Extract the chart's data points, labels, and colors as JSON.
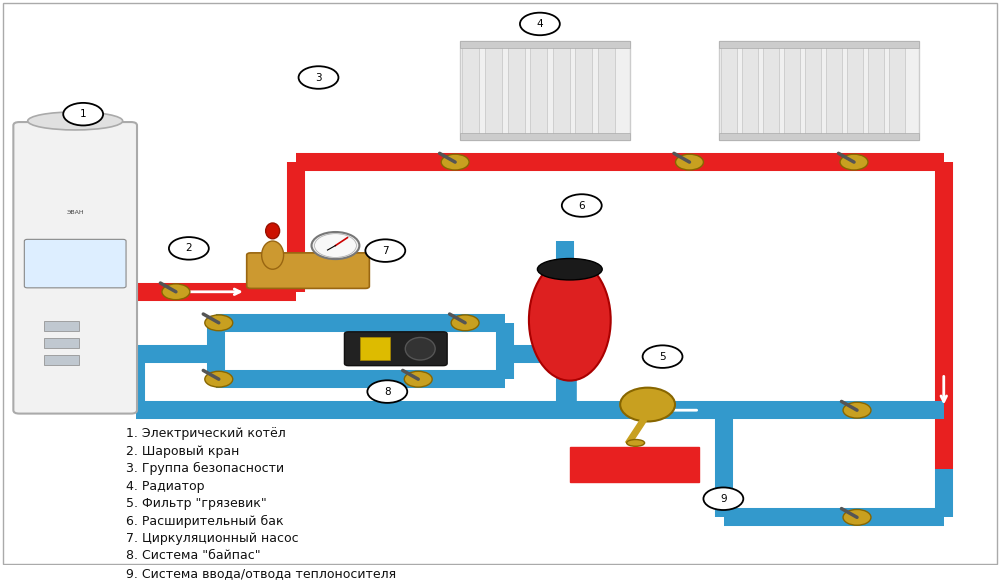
{
  "bg_color": "#ffffff",
  "fig_width": 10.0,
  "fig_height": 5.81,
  "dpi": 100,
  "pipe_red": "#e82020",
  "pipe_blue": "#3399cc",
  "pipe_lw": 13,
  "legend_items": [
    "1. Электрический котёл",
    "2. Шаровый кран",
    "3. Группа безопасности",
    "4. Радиатор",
    "5. Фильтр \"грязевик\"",
    "6. Расширительный бак",
    "7. Циркуляционный насос",
    "8. Система \"байпас\"",
    "9. Система ввода/отвода теплоносителя"
  ],
  "font_size_legend": 9
}
